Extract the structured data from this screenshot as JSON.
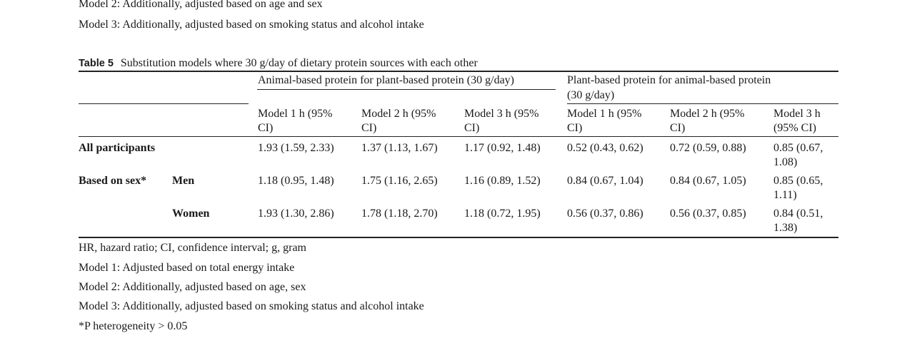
{
  "notes_top": [
    "Model 2: Additionally, adjusted based on age and sex",
    "Model 3: Additionally, adjusted based on smoking status and alcohol intake"
  ],
  "caption": {
    "label": "Table 5",
    "text": "Substitution models where 30 g/day of dietary protein sources with each other"
  },
  "group_headers": {
    "animal": "Animal-based protein for plant-based protein (30 g/day)",
    "plant_line1": "Plant-based protein for animal-based protein",
    "plant_line2": "(30 g/day)"
  },
  "col_headers": [
    [
      "Model 1 h (95%",
      "CI)"
    ],
    [
      "Model 2 h (95%",
      "CI)"
    ],
    [
      "Model 3 h (95%",
      "CI)"
    ],
    [
      "Model 1 h (95%",
      "CI)"
    ],
    [
      "Model 2 h (95%",
      "CI)"
    ],
    [
      "Model 3 h",
      "(95% CI)"
    ]
  ],
  "rows": [
    {
      "label": "All participants",
      "sublabel": "",
      "cells": [
        "1.93 (1.59, 2.33)",
        "1.37 (1.13, 1.67)",
        "1.17 (0.92, 1.48)",
        "0.52 (0.43, 0.62)",
        "0.72 (0.59, 0.88)"
      ],
      "last": [
        "0.85 (0.67,",
        "1.08)"
      ]
    },
    {
      "label": "Based on sex*",
      "sublabel": "Men",
      "cells": [
        "1.18 (0.95, 1.48)",
        "1.75 (1.16, 2.65)",
        "1.16 (0.89, 1.52)",
        "0.84 (0.67, 1.04)",
        "0.84 (0.67, 1.05)"
      ],
      "last": [
        "0.85 (0.65,",
        "1.11)"
      ]
    },
    {
      "label": "",
      "sublabel": "Women",
      "cells": [
        "1.93 (1.30, 2.86)",
        "1.78 (1.18, 2.70)",
        "1.18 (0.72, 1.95)",
        "0.56 (0.37, 0.86)",
        "0.56 (0.37, 0.85)"
      ],
      "last": [
        "0.84 (0.51,",
        "1.38)"
      ]
    }
  ],
  "footnotes": [
    "HR, hazard ratio; CI, confidence interval; g, gram",
    "Model 1: Adjusted based on total energy intake",
    "Model 2: Additionally, adjusted based on age, sex",
    "Model 3: Additionally, adjusted based on smoking status and alcohol intake",
    "*P heterogeneity > 0.05"
  ]
}
